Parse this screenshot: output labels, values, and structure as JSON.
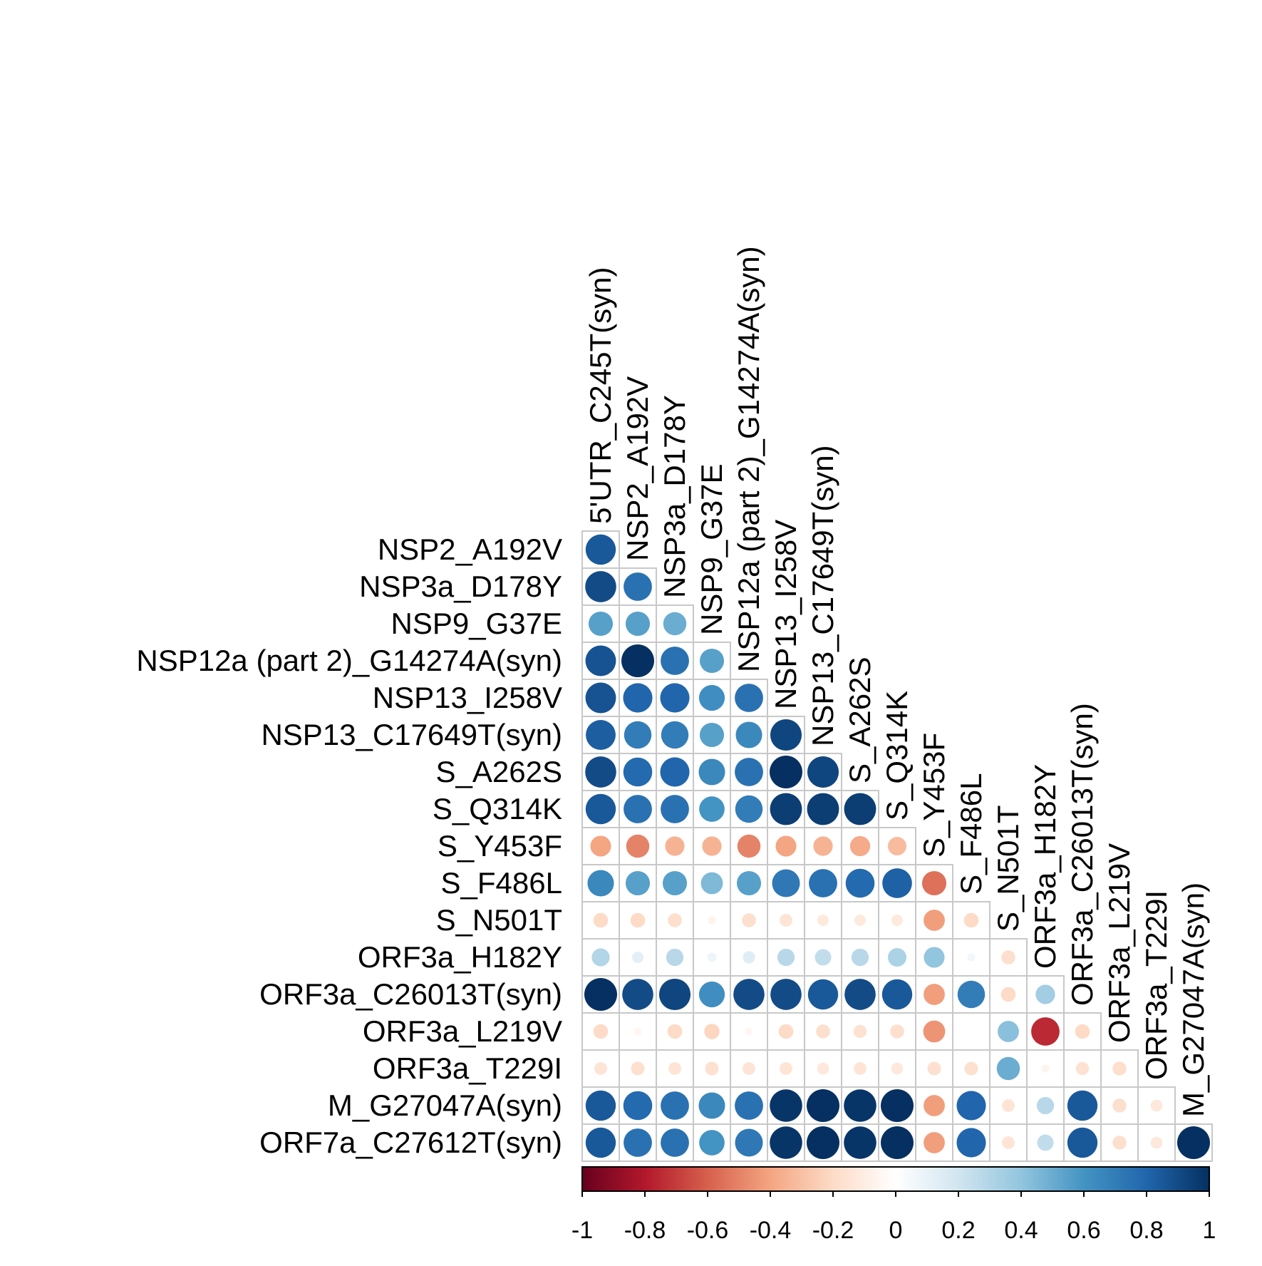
{
  "chart_data": {
    "type": "heatmap",
    "subtype": "correlation-lower-triangle-circles",
    "variables": [
      "5'UTR_C245T(syn)",
      "NSP2_A192V",
      "NSP3a_D178Y",
      "NSP9_G37E",
      "NSP12a (part 2)_G14274A(syn)",
      "NSP13_I258V",
      "NSP13_C17649T(syn)",
      "S_A262S",
      "S_Q314K",
      "S_Y453F",
      "S_F486L",
      "S_N501T",
      "ORF3a_H182Y",
      "ORF3a_C26013T(syn)",
      "ORF3a_L219V",
      "ORF3a_T229I",
      "M_G27047A(syn)",
      "ORF7a_C27612T(syn)"
    ],
    "row_labels": [
      "NSP2_A192V",
      "NSP3a_D178Y",
      "NSP9_G37E",
      "NSP12a (part 2)_G14274A(syn)",
      "NSP13_I258V",
      "NSP13_C17649T(syn)",
      "S_A262S",
      "S_Q314K",
      "S_Y453F",
      "S_F486L",
      "S_N501T",
      "ORF3a_H182Y",
      "ORF3a_C26013T(syn)",
      "ORF3a_L219V",
      "ORF3a_T229I",
      "M_G27047A(syn)",
      "ORF7a_C27612T(syn)"
    ],
    "col_labels": [
      "5'UTR_C245T(syn)",
      "NSP2_A192V",
      "NSP3a_D178Y",
      "NSP9_G37E",
      "NSP12a (part 2)_G14274A(syn)",
      "NSP13_I258V",
      "NSP13_C17649T(syn)",
      "S_A262S",
      "S_Q314K",
      "S_Y453F",
      "S_F486L",
      "S_N501T",
      "ORF3a_H182Y",
      "ORF3a_C26013T(syn)",
      "ORF3a_L219V",
      "ORF3a_T229I",
      "M_G27047A(syn)"
    ],
    "matrix": [
      [
        0.85
      ],
      [
        0.9,
        0.75
      ],
      [
        0.55,
        0.55,
        0.5
      ],
      [
        0.87,
        1.0,
        0.75,
        0.55
      ],
      [
        0.87,
        0.8,
        0.8,
        0.62,
        0.75
      ],
      [
        0.83,
        0.7,
        0.7,
        0.55,
        0.65,
        0.92
      ],
      [
        0.9,
        0.78,
        0.8,
        0.65,
        0.75,
        1.0,
        0.92
      ],
      [
        0.85,
        0.75,
        0.75,
        0.6,
        0.7,
        0.95,
        0.95,
        0.95
      ],
      [
        -0.4,
        -0.5,
        -0.35,
        -0.35,
        -0.5,
        -0.4,
        -0.35,
        -0.38,
        -0.32
      ],
      [
        0.65,
        0.55,
        0.55,
        0.45,
        0.55,
        0.72,
        0.75,
        0.78,
        0.82,
        -0.55
      ],
      [
        -0.2,
        -0.2,
        -0.18,
        -0.06,
        -0.18,
        -0.15,
        -0.12,
        -0.12,
        -0.12,
        -0.42,
        -0.2
      ],
      [
        0.3,
        0.12,
        0.28,
        0.08,
        0.14,
        0.28,
        0.25,
        0.28,
        0.32,
        0.4,
        0.06,
        -0.18
      ],
      [
        1.0,
        0.9,
        0.92,
        0.62,
        0.9,
        0.9,
        0.85,
        0.9,
        0.85,
        -0.42,
        0.7,
        -0.2,
        0.35
      ],
      [
        -0.2,
        -0.05,
        -0.2,
        -0.22,
        -0.05,
        -0.2,
        -0.18,
        -0.16,
        -0.18,
        -0.45,
        0.0,
        0.42,
        -0.75,
        -0.2
      ],
      [
        -0.15,
        -0.17,
        -0.15,
        -0.17,
        -0.15,
        -0.15,
        -0.13,
        -0.15,
        -0.13,
        -0.17,
        -0.17,
        0.5,
        -0.06,
        -0.16,
        -0.18
      ],
      [
        0.85,
        0.78,
        0.75,
        0.65,
        0.75,
        0.98,
        1.0,
        0.98,
        1.0,
        -0.42,
        0.8,
        -0.15,
        0.28,
        0.85,
        -0.18,
        -0.13
      ],
      [
        0.85,
        0.75,
        0.75,
        0.6,
        0.72,
        0.98,
        1.0,
        0.98,
        1.0,
        -0.42,
        0.8,
        -0.15,
        0.25,
        0.85,
        -0.18,
        -0.13,
        1.0
      ]
    ],
    "color_scale": {
      "range": [
        -1,
        1
      ],
      "colors": [
        "#67001F",
        "#B2182B",
        "#D6604D",
        "#F4A582",
        "#FDDBC7",
        "#FFFFFF",
        "#D1E5F0",
        "#92C5DE",
        "#4393C3",
        "#2166AC",
        "#053061"
      ],
      "tick_labels": [
        "-1",
        "-0.8",
        "-0.6",
        "-0.4",
        "-0.2",
        "0",
        "0.2",
        "0.4",
        "0.6",
        "0.8",
        "1"
      ]
    },
    "legend_position": "bottom",
    "grid": true
  }
}
